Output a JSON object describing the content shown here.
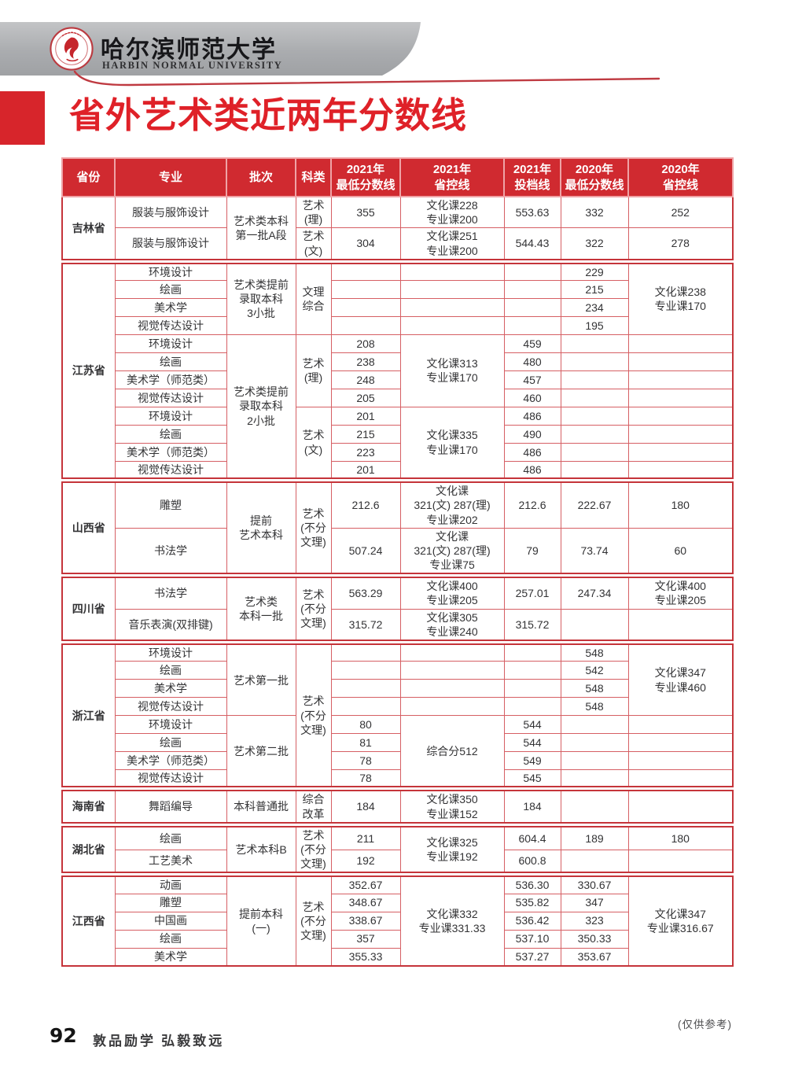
{
  "header": {
    "university_cn": "哈尔滨师范大学",
    "university_en": "HARBIN NORMAL UNIVERSITY",
    "logo_icon": "university-seal-icon"
  },
  "title": "省外艺术类近两年分数线",
  "colors": {
    "accent_red": "#d7252b",
    "table_header_bg": "#d02a30",
    "table_border_red": "#c5343a",
    "banner_gray": "#aaacaf"
  },
  "table": {
    "headers": [
      "省份",
      "专业",
      "批次",
      "科类",
      "2021年\n最低分数线",
      "2021年\n省控线",
      "2021年\n投档线",
      "2020年\n最低分数线",
      "2020年\n省控线"
    ],
    "rows": [
      {
        "cells": [
          {
            "t": "吉林省",
            "rs": 2,
            "n": "province-cell"
          },
          {
            "t": "服装与服饰设计"
          },
          {
            "t": "艺术类本科\n第一批A段",
            "rs": 2
          },
          {
            "t": "艺术\n(理)"
          },
          {
            "t": "355"
          },
          {
            "t": "文化课228\n专业课200"
          },
          {
            "t": "553.63"
          },
          {
            "t": "332"
          },
          {
            "t": "252"
          }
        ]
      },
      {
        "cells": [
          {
            "t": "服装与服饰设计"
          },
          {
            "t": "艺术\n(文)"
          },
          {
            "t": "304"
          },
          {
            "t": "文化课251\n专业课200"
          },
          {
            "t": "544.43"
          },
          {
            "t": "322"
          },
          {
            "t": "278"
          }
        ]
      },
      {
        "group": true,
        "cells": [
          {
            "t": "江苏省",
            "rs": 12,
            "n": "province-cell"
          },
          {
            "t": "环境设计"
          },
          {
            "t": "艺术类提前\n录取本科\n3小批",
            "rs": 4
          },
          {
            "t": "文理\n综合",
            "rs": 4
          },
          {
            "t": ""
          },
          {
            "t": ""
          },
          {
            "t": ""
          },
          {
            "t": "229"
          },
          {
            "t": "文化课238\n专业课170",
            "rs": 4
          }
        ]
      },
      {
        "cells": [
          {
            "t": "绘画"
          },
          {
            "t": ""
          },
          {
            "t": ""
          },
          {
            "t": ""
          },
          {
            "t": "215"
          }
        ]
      },
      {
        "cells": [
          {
            "t": "美术学"
          },
          {
            "t": ""
          },
          {
            "t": ""
          },
          {
            "t": ""
          },
          {
            "t": "234"
          }
        ]
      },
      {
        "cells": [
          {
            "t": "视觉传达设计"
          },
          {
            "t": ""
          },
          {
            "t": ""
          },
          {
            "t": ""
          },
          {
            "t": "195"
          }
        ]
      },
      {
        "cells": [
          {
            "t": "环境设计"
          },
          {
            "t": "艺术类提前\n录取本科\n2小批",
            "rs": 8
          },
          {
            "t": "艺术\n(理)",
            "rs": 4
          },
          {
            "t": "208"
          },
          {
            "t": "文化课313\n专业课170",
            "rs": 4
          },
          {
            "t": "459"
          },
          {
            "t": ""
          },
          {
            "t": ""
          }
        ]
      },
      {
        "cells": [
          {
            "t": "绘画"
          },
          {
            "t": "238"
          },
          {
            "t": "480"
          },
          {
            "t": ""
          },
          {
            "t": ""
          }
        ]
      },
      {
        "cells": [
          {
            "t": "美术学（师范类）"
          },
          {
            "t": "248"
          },
          {
            "t": "457"
          },
          {
            "t": ""
          },
          {
            "t": ""
          }
        ]
      },
      {
        "cells": [
          {
            "t": "视觉传达设计"
          },
          {
            "t": "205"
          },
          {
            "t": "460"
          },
          {
            "t": ""
          },
          {
            "t": ""
          }
        ]
      },
      {
        "cells": [
          {
            "t": "环境设计"
          },
          {
            "t": "艺术\n(文)",
            "rs": 4
          },
          {
            "t": "201"
          },
          {
            "t": "文化课335\n专业课170",
            "rs": 4
          },
          {
            "t": "486"
          },
          {
            "t": ""
          },
          {
            "t": ""
          }
        ]
      },
      {
        "cells": [
          {
            "t": "绘画"
          },
          {
            "t": "215"
          },
          {
            "t": "490"
          },
          {
            "t": ""
          },
          {
            "t": ""
          }
        ]
      },
      {
        "cells": [
          {
            "t": "美术学（师范类）"
          },
          {
            "t": "223"
          },
          {
            "t": "486"
          },
          {
            "t": ""
          },
          {
            "t": ""
          }
        ]
      },
      {
        "cells": [
          {
            "t": "视觉传达设计"
          },
          {
            "t": "201"
          },
          {
            "t": "486"
          },
          {
            "t": ""
          },
          {
            "t": ""
          }
        ]
      },
      {
        "group": true,
        "cells": [
          {
            "t": "山西省",
            "rs": 2,
            "n": "province-cell"
          },
          {
            "t": "雕塑"
          },
          {
            "t": "提前\n艺术本科",
            "rs": 2
          },
          {
            "t": "艺术\n(不分\n文理)",
            "rs": 2
          },
          {
            "t": "212.6"
          },
          {
            "t": "文化课\n321(文) 287(理)\n专业课202"
          },
          {
            "t": "212.6"
          },
          {
            "t": "222.67"
          },
          {
            "t": "180"
          }
        ]
      },
      {
        "cells": [
          {
            "t": "书法学"
          },
          {
            "t": "507.24"
          },
          {
            "t": "文化课\n321(文) 287(理)\n专业课75"
          },
          {
            "t": "79"
          },
          {
            "t": "73.74"
          },
          {
            "t": "60"
          }
        ]
      },
      {
        "group": true,
        "cells": [
          {
            "t": "四川省",
            "rs": 2,
            "n": "province-cell"
          },
          {
            "t": "书法学"
          },
          {
            "t": "艺术类\n本科一批",
            "rs": 2
          },
          {
            "t": "艺术\n(不分\n文理)",
            "rs": 2
          },
          {
            "t": "563.29"
          },
          {
            "t": "文化课400\n专业课205"
          },
          {
            "t": "257.01"
          },
          {
            "t": "247.34"
          },
          {
            "t": "文化课400\n专业课205"
          }
        ]
      },
      {
        "cells": [
          {
            "t": "音乐表演(双排键)"
          },
          {
            "t": "315.72"
          },
          {
            "t": "文化课305\n专业课240"
          },
          {
            "t": "315.72"
          },
          {
            "t": ""
          },
          {
            "t": ""
          }
        ]
      },
      {
        "group": true,
        "cells": [
          {
            "t": "浙江省",
            "rs": 8,
            "n": "province-cell"
          },
          {
            "t": "环境设计"
          },
          {
            "t": "艺术第一批",
            "rs": 4
          },
          {
            "t": "艺术\n(不分\n文理)",
            "rs": 8
          },
          {
            "t": ""
          },
          {
            "t": ""
          },
          {
            "t": ""
          },
          {
            "t": "548"
          },
          {
            "t": "文化课347\n专业课460",
            "rs": 4
          }
        ]
      },
      {
        "cells": [
          {
            "t": "绘画"
          },
          {
            "t": ""
          },
          {
            "t": ""
          },
          {
            "t": ""
          },
          {
            "t": "542"
          }
        ]
      },
      {
        "cells": [
          {
            "t": "美术学"
          },
          {
            "t": ""
          },
          {
            "t": ""
          },
          {
            "t": ""
          },
          {
            "t": "548"
          }
        ]
      },
      {
        "cells": [
          {
            "t": "视觉传达设计"
          },
          {
            "t": ""
          },
          {
            "t": ""
          },
          {
            "t": ""
          },
          {
            "t": "548"
          }
        ]
      },
      {
        "cells": [
          {
            "t": "环境设计"
          },
          {
            "t": "艺术第二批",
            "rs": 4
          },
          {
            "t": "80"
          },
          {
            "t": "综合分512",
            "rs": 4
          },
          {
            "t": "544"
          },
          {
            "t": ""
          },
          {
            "t": ""
          }
        ]
      },
      {
        "cells": [
          {
            "t": "绘画"
          },
          {
            "t": "81"
          },
          {
            "t": "544"
          },
          {
            "t": ""
          },
          {
            "t": ""
          }
        ]
      },
      {
        "cells": [
          {
            "t": "美术学（师范类）"
          },
          {
            "t": "78"
          },
          {
            "t": "549"
          },
          {
            "t": ""
          },
          {
            "t": ""
          }
        ]
      },
      {
        "cells": [
          {
            "t": "视觉传达设计"
          },
          {
            "t": "78"
          },
          {
            "t": "545"
          },
          {
            "t": ""
          },
          {
            "t": ""
          }
        ]
      },
      {
        "group": true,
        "cells": [
          {
            "t": "海南省",
            "n": "province-cell"
          },
          {
            "t": "舞蹈编导"
          },
          {
            "t": "本科普通批"
          },
          {
            "t": "综合\n改革"
          },
          {
            "t": "184"
          },
          {
            "t": "文化课350\n专业课152"
          },
          {
            "t": "184"
          },
          {
            "t": ""
          },
          {
            "t": ""
          }
        ]
      },
      {
        "group": true,
        "cells": [
          {
            "t": "湖北省",
            "rs": 2,
            "n": "province-cell"
          },
          {
            "t": "绘画"
          },
          {
            "t": "艺术本科B",
            "rs": 2
          },
          {
            "t": "艺术\n(不分\n文理)",
            "rs": 2
          },
          {
            "t": "211"
          },
          {
            "t": "文化课325\n专业课192",
            "rs": 2
          },
          {
            "t": "604.4"
          },
          {
            "t": "189"
          },
          {
            "t": "180"
          }
        ]
      },
      {
        "cells": [
          {
            "t": "工艺美术"
          },
          {
            "t": "192"
          },
          {
            "t": "600.8"
          },
          {
            "t": ""
          },
          {
            "t": ""
          }
        ]
      },
      {
        "group": true,
        "cells": [
          {
            "t": "江西省",
            "rs": 5,
            "n": "province-cell"
          },
          {
            "t": "动画"
          },
          {
            "t": "提前本科\n(一)",
            "rs": 5
          },
          {
            "t": "艺术\n(不分\n文理)",
            "rs": 5
          },
          {
            "t": "352.67"
          },
          {
            "t": "文化课332\n专业课331.33",
            "rs": 5
          },
          {
            "t": "536.30"
          },
          {
            "t": "330.67"
          },
          {
            "t": "文化课347\n专业课316.67",
            "rs": 5
          }
        ]
      },
      {
        "cells": [
          {
            "t": "雕塑"
          },
          {
            "t": "348.67"
          },
          {
            "t": "535.82"
          },
          {
            "t": "347"
          }
        ]
      },
      {
        "cells": [
          {
            "t": "中国画"
          },
          {
            "t": "338.67"
          },
          {
            "t": "536.42"
          },
          {
            "t": "323"
          }
        ]
      },
      {
        "cells": [
          {
            "t": "绘画"
          },
          {
            "t": "357"
          },
          {
            "t": "537.10"
          },
          {
            "t": "350.33"
          }
        ]
      },
      {
        "cells": [
          {
            "t": "美术学"
          },
          {
            "t": "355.33"
          },
          {
            "t": "537.27"
          },
          {
            "t": "353.67"
          }
        ]
      }
    ]
  },
  "footer": {
    "note": "(仅供参考)",
    "page_number": "92",
    "motto": "敦品励学 弘毅致远"
  }
}
